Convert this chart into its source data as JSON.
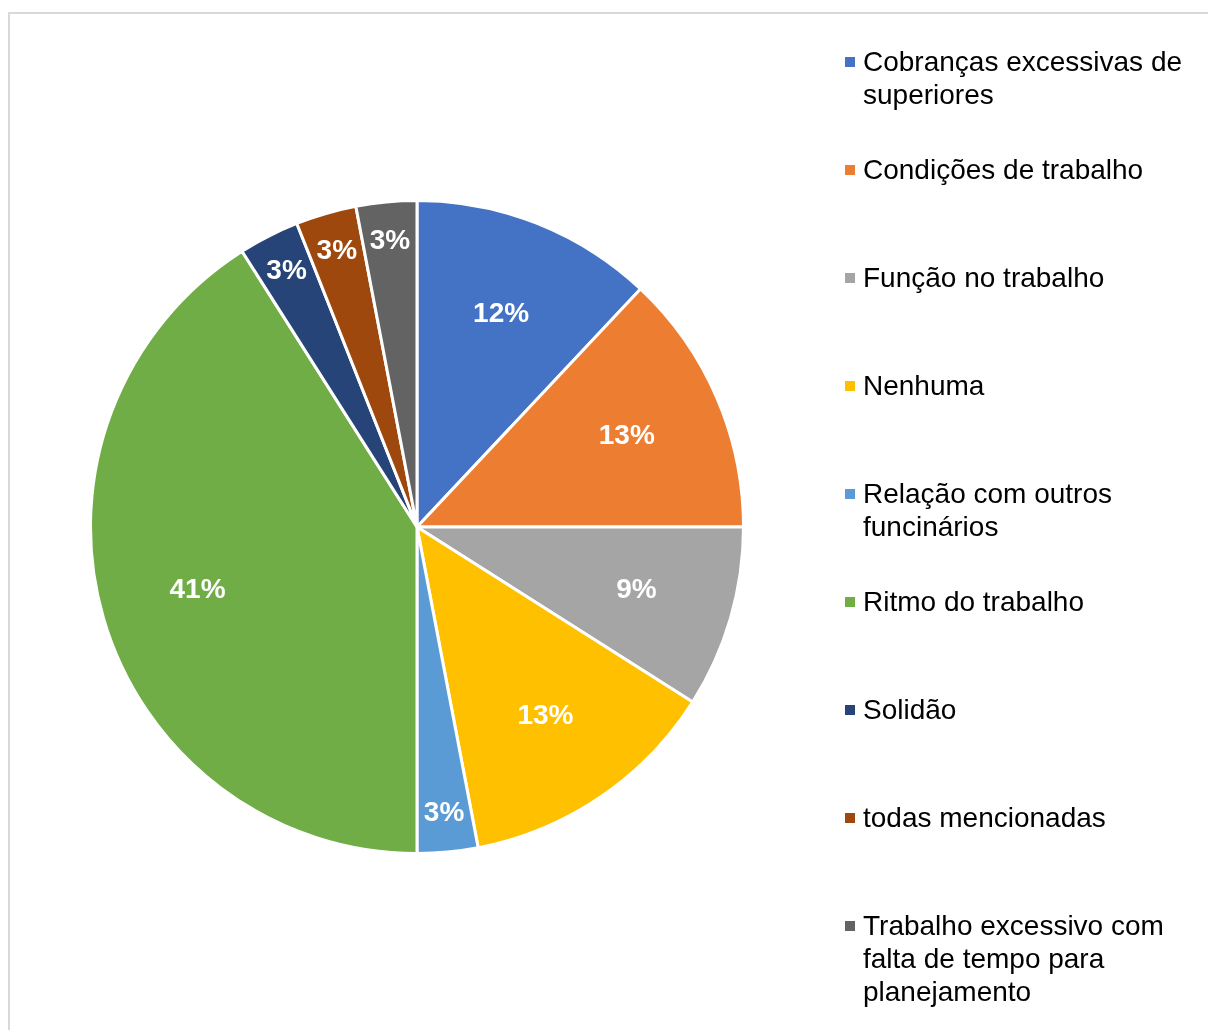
{
  "chart_data": {
    "type": "pie",
    "categories": [
      "Cobranças excessivas de superiores",
      "Condições de trabalho",
      "Função no trabalho",
      "Nenhuma",
      "Relação com outros funcinários",
      "Ritmo do trabalho",
      "Solidão",
      "todas mencionadas",
      "Trabalho excessivo com falta de tempo para planejamento"
    ],
    "values": [
      12,
      13,
      9,
      13,
      3,
      41,
      3,
      3,
      3
    ],
    "colors": [
      "#4472c4",
      "#ed7d31",
      "#a5a5a5",
      "#ffc000",
      "#5b9bd5",
      "#70ad47",
      "#264478",
      "#9e480e",
      "#636363"
    ],
    "value_labels": [
      "12%",
      "13%",
      "9%",
      "13%",
      "3%",
      "41%",
      "3%",
      "3%",
      "3%"
    ],
    "legend": "right"
  }
}
